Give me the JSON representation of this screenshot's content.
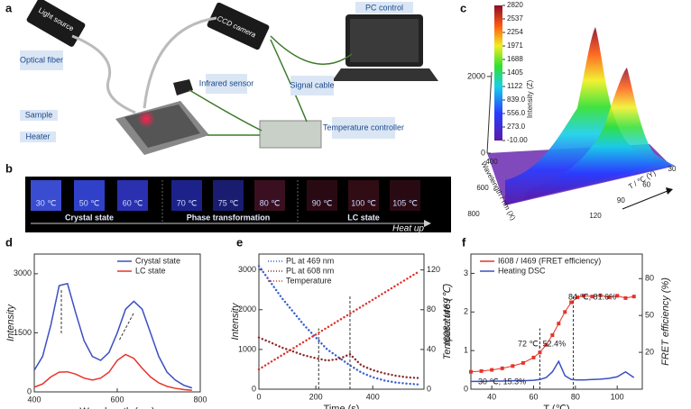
{
  "panel_labels": [
    "a",
    "b",
    "c",
    "d",
    "e",
    "f"
  ],
  "diagram": {
    "labels": [
      "Light source",
      "Optical fiber",
      "Sample",
      "Heater",
      "Infrared sensor",
      "CCD camera",
      "PC control",
      "Signal cable",
      "Temperature controller"
    ]
  },
  "images": {
    "temperatures": [
      "30 ℃",
      "50 ℃",
      "60 ℃",
      "70 ℃",
      "75 ℃",
      "80 ℃",
      "90 ℃",
      "100 ℃",
      "105 ℃"
    ],
    "groups": [
      "Crystal state",
      "Phase transformation",
      "LC state"
    ],
    "arrow_label": "Heat up"
  },
  "chart_data": [
    {
      "type": "surface",
      "zlabel": "Intensity (Z)",
      "xlabel": "Wavelength / nm (X)",
      "ylabel": "T / ℃ (Y)",
      "zticks": [
        0,
        2000
      ],
      "zlim": [
        0,
        2820
      ],
      "xticks": [
        400,
        600,
        800
      ],
      "xlim": [
        400,
        800
      ],
      "yticks": [
        30,
        60,
        90,
        120
      ],
      "ylim": [
        30,
        120
      ],
      "colorbar": {
        "lim": [
          -10,
          2820
        ],
        "ticks": [
          2820,
          2537,
          2254,
          1971,
          1688,
          1405,
          1122,
          {
            "value": 839,
            "label": "839.0"
          },
          {
            "value": 556,
            "label": "556.0"
          },
          {
            "value": 273,
            "label": "273.0"
          },
          {
            "value": -10,
            "label": "-10.00"
          }
        ]
      }
    },
    {
      "type": "line",
      "xlabel": "Wavelength (nm)",
      "ylabel": "Intensity",
      "legend": "upper right",
      "x": [
        400,
        420,
        440,
        460,
        480,
        500,
        520,
        540,
        560,
        580,
        600,
        620,
        640,
        660,
        680,
        700,
        720,
        740,
        760,
        780
      ],
      "series": [
        {
          "name": "Crystal state",
          "color": "#3b4fc4",
          "style": "solid",
          "values": [
            550,
            900,
            1700,
            2700,
            2750,
            2000,
            1300,
            900,
            800,
            1000,
            1500,
            2100,
            2300,
            2100,
            1500,
            900,
            500,
            300,
            170,
            100
          ]
        },
        {
          "name": "LC state",
          "color": "#e8332a",
          "style": "solid",
          "values": [
            120,
            200,
            380,
            500,
            510,
            450,
            350,
            300,
            350,
            500,
            800,
            950,
            850,
            600,
            380,
            230,
            140,
            90,
            60,
            40
          ]
        }
      ],
      "xlim": [
        400,
        800
      ],
      "xticks": [
        400,
        600,
        800
      ],
      "ylim": [
        0,
        3500
      ],
      "yticks": [
        0,
        1500,
        3000
      ]
    },
    {
      "type": "line",
      "xlabel": "Time (s)",
      "ylabel": "Intensity",
      "y2label": "Temperature (℃)",
      "legend": "upper left",
      "x": [
        0,
        40,
        80,
        120,
        160,
        200,
        240,
        280,
        320,
        360,
        400,
        440,
        480,
        520,
        560
      ],
      "series": [
        {
          "name": "PL at 469 nm",
          "color": "#3a5fcd",
          "style": "dotted",
          "values": [
            3100,
            2700,
            2300,
            1950,
            1600,
            1300,
            1000,
            800,
            600,
            420,
            300,
            220,
            170,
            140,
            120
          ]
        },
        {
          "name": "PL at 608 nm",
          "color": "#8b2a2a",
          "style": "dotted",
          "values": [
            1300,
            1180,
            1050,
            950,
            850,
            780,
            720,
            760,
            880,
            600,
            480,
            400,
            340,
            300,
            280
          ]
        },
        {
          "name": "Temperature",
          "color": "#e0302a",
          "style": "dotted",
          "axis": "y2",
          "values": [
            20,
            27,
            34,
            41,
            48,
            55,
            62,
            69,
            76,
            83,
            90,
            97,
            104,
            111,
            118
          ]
        }
      ],
      "xlim": [
        0,
        580
      ],
      "xticks": [
        0,
        200,
        400
      ],
      "ylim": [
        0,
        3400
      ],
      "yticks": [
        0,
        1000,
        2000,
        3000
      ],
      "y2lim": [
        0,
        136
      ],
      "y2ticks": [
        0,
        40,
        80,
        120
      ],
      "vlines": [
        210,
        320
      ]
    },
    {
      "type": "line",
      "xlabel": "T (℃)",
      "ylabel": "I608 / I469",
      "y2label": "FRET efficiency (%)",
      "legend": "upper left",
      "x": [
        30,
        35,
        40,
        45,
        50,
        55,
        60,
        63,
        66,
        69,
        72,
        75,
        78,
        81,
        84,
        88,
        92,
        96,
        100,
        104,
        108
      ],
      "series": [
        {
          "name": "I608 / I469 (FRET efficiency)",
          "color": "#e8332a",
          "style": "markers",
          "values": [
            0.45,
            0.47,
            0.5,
            0.54,
            0.6,
            0.68,
            0.82,
            0.95,
            1.15,
            1.4,
            1.7,
            2.0,
            2.25,
            2.38,
            2.42,
            2.4,
            2.43,
            2.38,
            2.42,
            2.36,
            2.4
          ]
        },
        {
          "name": "Heating DSC",
          "color": "#3b4fc4",
          "style": "solid",
          "values": [
            0.2,
            0.2,
            0.21,
            0.21,
            0.22,
            0.22,
            0.23,
            0.25,
            0.3,
            0.45,
            0.72,
            0.35,
            0.25,
            0.24,
            0.24,
            0.25,
            0.26,
            0.28,
            0.32,
            0.45,
            0.3
          ]
        }
      ],
      "xlim": [
        30,
        112
      ],
      "xticks": [
        40,
        60,
        80,
        100
      ],
      "ylim": [
        0,
        3.5
      ],
      "yticks": [
        0,
        1,
        2,
        3
      ],
      "y2lim": [
        -10,
        100
      ],
      "y2ticks": [
        20,
        50,
        80
      ],
      "vlines": [
        63,
        79
      ],
      "annotations": [
        "84 ℃, 81.6%",
        "72 ℃, 52.4%",
        "30 ℃, 15.3%"
      ]
    }
  ]
}
